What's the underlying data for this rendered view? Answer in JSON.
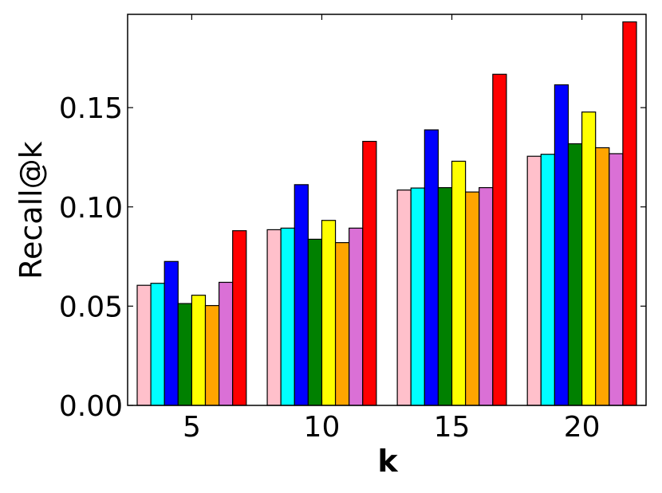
{
  "chart_data": {
    "type": "bar",
    "xlabel": "k",
    "ylabel": "Recall@k",
    "categories": [
      "5",
      "10",
      "15",
      "20"
    ],
    "ylim": [
      0,
      0.197
    ],
    "yticks": [
      "0.00",
      "0.05",
      "0.10",
      "0.15"
    ],
    "grid": false,
    "series": [
      {
        "color": "#ffc0cb",
        "values": [
          0.0605,
          0.0885,
          0.1085,
          0.1255
        ]
      },
      {
        "color": "#00ffff",
        "values": [
          0.0615,
          0.0893,
          0.1095,
          0.1265
        ]
      },
      {
        "color": "#0000ff",
        "values": [
          0.0725,
          0.1112,
          0.1388,
          0.1615
        ]
      },
      {
        "color": "#008000",
        "values": [
          0.0513,
          0.0837,
          0.1097,
          0.1318
        ]
      },
      {
        "color": "#ffff00",
        "values": [
          0.0555,
          0.0932,
          0.123,
          0.1478
        ]
      },
      {
        "color": "#ffa500",
        "values": [
          0.0503,
          0.082,
          0.1075,
          0.1298
        ]
      },
      {
        "color": "#da70d6",
        "values": [
          0.062,
          0.0893,
          0.1097,
          0.1268
        ]
      },
      {
        "color": "#ff0000",
        "values": [
          0.088,
          0.133,
          0.1668,
          0.1932
        ]
      }
    ]
  }
}
